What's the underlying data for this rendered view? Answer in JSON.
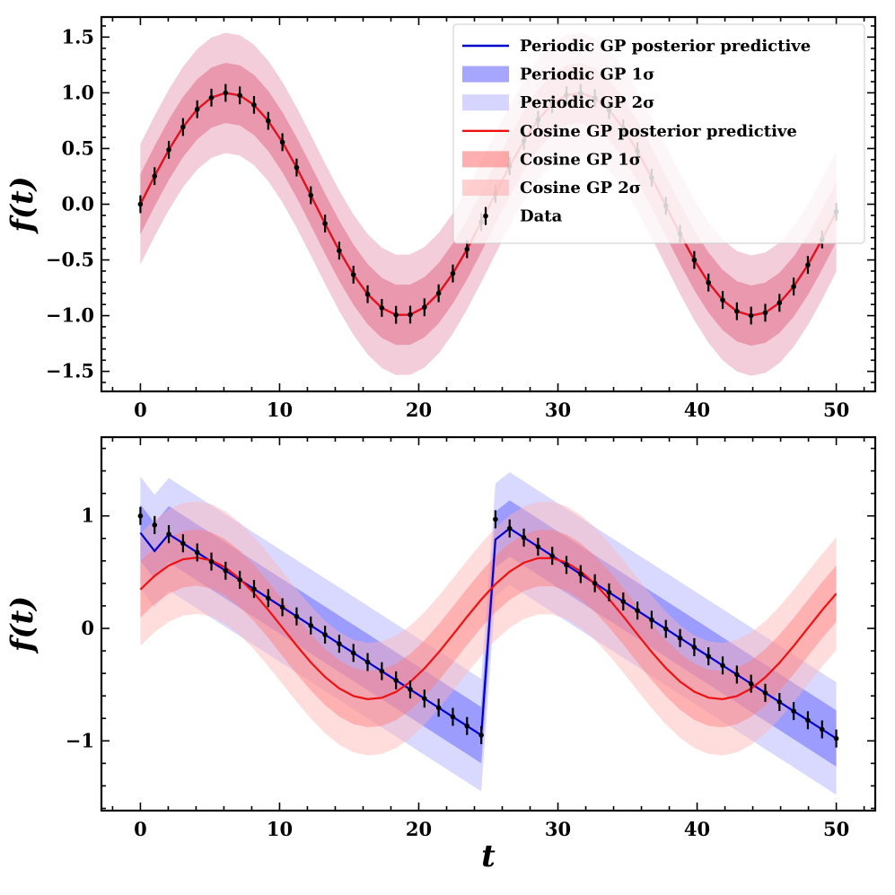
{
  "chart_data": [
    {
      "type": "line",
      "panel": "top",
      "ylabel": "f(t)",
      "xlabel": "",
      "xlim": [
        -2.8,
        52.8
      ],
      "ylim": [
        -1.68,
        1.68
      ],
      "xticks": [
        0,
        10,
        20,
        30,
        40,
        50
      ],
      "xtick_labels": [
        "0",
        "10",
        "20",
        "30",
        "40",
        "50"
      ],
      "yticks": [
        -1.5,
        -1.0,
        -0.5,
        0.0,
        0.5,
        1.0,
        1.5
      ],
      "ytick_labels": [
        "−1.5",
        "−1.0",
        "−0.5",
        "0.0",
        "0.5",
        "1.0",
        "1.5"
      ],
      "legend_position": "top-right",
      "legend": [
        {
          "label": "Periodic GP posterior predictive",
          "kind": "line",
          "color": "#0000cc"
        },
        {
          "label": "Periodic GP 1σ",
          "kind": "band",
          "color": "#6a6aff"
        },
        {
          "label": "Periodic GP 2σ",
          "kind": "band",
          "color": "#b9b9ff"
        },
        {
          "label": "Cosine GP posterior predictive",
          "kind": "line",
          "color": "#ee1111"
        },
        {
          "label": "Cosine GP 1σ",
          "kind": "band",
          "color": "#ff7a7a"
        },
        {
          "label": "Cosine GP 2σ",
          "kind": "band",
          "color": "#ffb4b4"
        },
        {
          "label": "Data",
          "kind": "errorbar",
          "color": "#000000"
        }
      ],
      "data_description": "y = sin(t / 4) sampled at 50 points, error bar ±0.08",
      "data_error": 0.08,
      "periodic_sigma": 0.27,
      "cosine_sigma": 0.27
    },
    {
      "type": "line",
      "panel": "bottom",
      "ylabel": "f(t)",
      "xlabel": "t",
      "xlim": [
        -2.8,
        52.8
      ],
      "ylim": [
        -1.62,
        1.7
      ],
      "xticks": [
        0,
        10,
        20,
        30,
        40,
        50
      ],
      "xtick_labels": [
        "0",
        "10",
        "20",
        "30",
        "40",
        "50"
      ],
      "yticks": [
        -1,
        0,
        1
      ],
      "ytick_labels": [
        "−1",
        "0",
        "1"
      ],
      "data_description": "sawtooth: y = 1 - 2 * frac(t / 8π) sampled at 50 points, error bar ±0.08",
      "data_error": 0.08,
      "periodic_sigma": 0.25,
      "cosine_amplitude": 0.63,
      "cosine_sigma": 0.25
    }
  ],
  "colors": {
    "periodic_line": "#0000cc",
    "periodic_1sigma": "#6a6aff",
    "periodic_2sigma": "#b9b9ff",
    "cosine_line": "#ee1111",
    "cosine_1sigma": "#ff7a7a",
    "cosine_2sigma": "#ffb4b4",
    "data": "#000000"
  }
}
